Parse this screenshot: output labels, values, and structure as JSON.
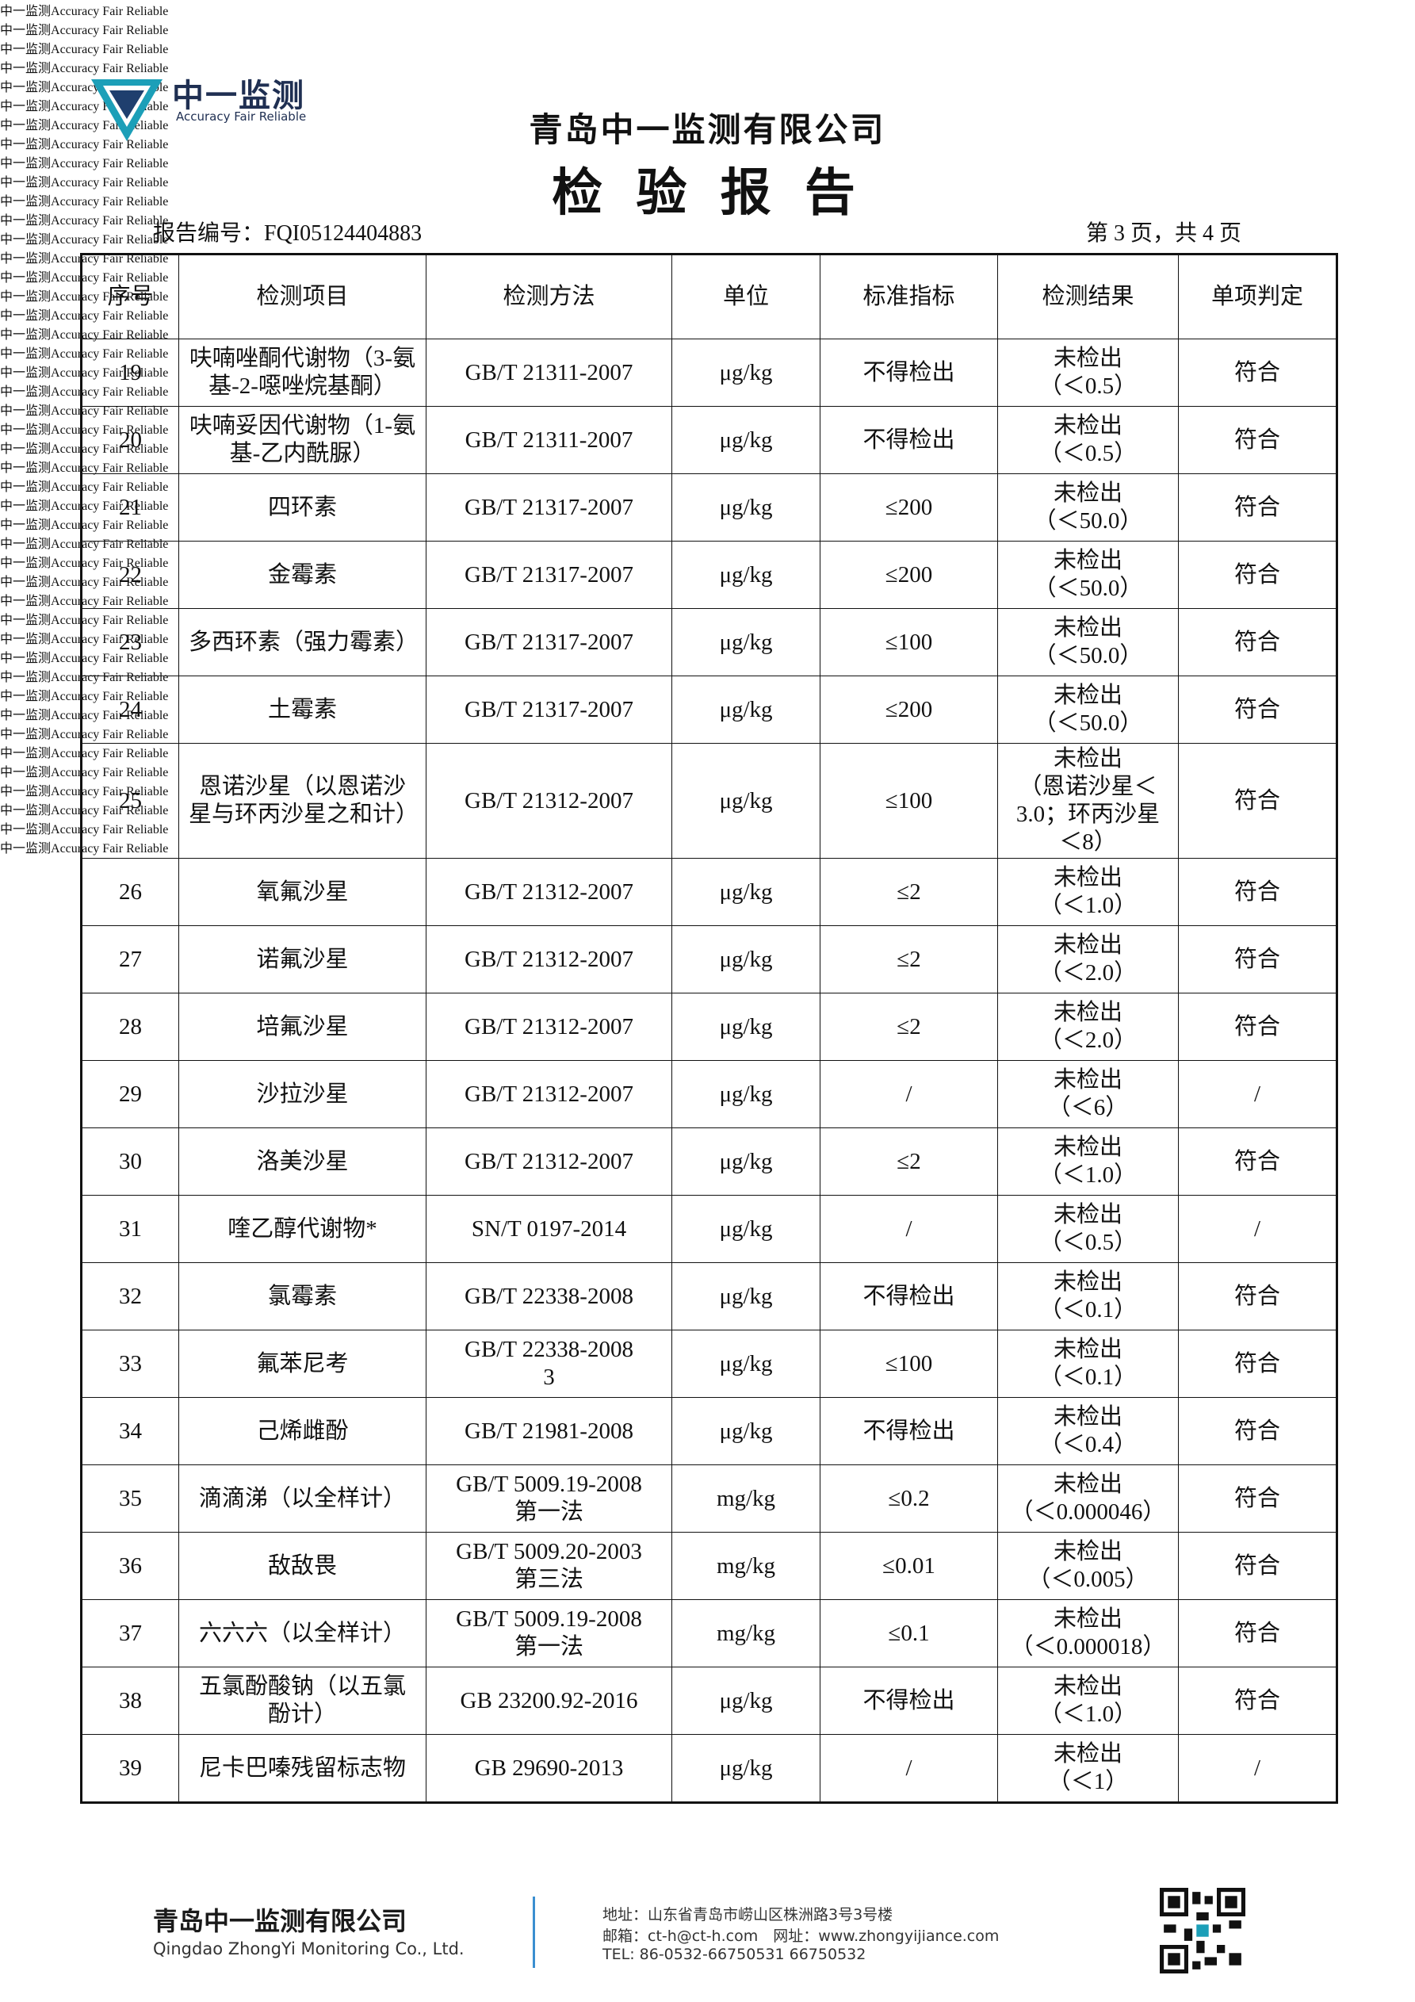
{
  "logo": {
    "name": "中一监测",
    "tagline": "Accuracy Fair Reliable"
  },
  "watermark": {
    "text": "中一监测",
    "tagline": "Accuracy Fair Reliable"
  },
  "header": {
    "company": "青岛中一监测有限公司",
    "title": "检 验 报 告",
    "report_no": "报告编号：FQI05124404883",
    "page_info": "第 3 页，共 4 页"
  },
  "table": {
    "columns": [
      "序号",
      "检测项目",
      "检测方法",
      "单位",
      "标准指标",
      "检测结果",
      "单项判定"
    ],
    "rows": [
      [
        "19",
        "呋喃唑酮代谢物（3-氨基-2-噁唑烷基酮）",
        "GB/T 21311-2007",
        "μg/kg",
        "不得检出",
        "未检出\n（＜0.5）",
        "符合"
      ],
      [
        "20",
        "呋喃妥因代谢物（1-氨基-乙内酰脲）",
        "GB/T 21311-2007",
        "μg/kg",
        "不得检出",
        "未检出\n（＜0.5）",
        "符合"
      ],
      [
        "21",
        "四环素",
        "GB/T 21317-2007",
        "μg/kg",
        "≤200",
        "未检出\n（＜50.0）",
        "符合"
      ],
      [
        "22",
        "金霉素",
        "GB/T 21317-2007",
        "μg/kg",
        "≤200",
        "未检出\n（＜50.0）",
        "符合"
      ],
      [
        "23",
        "多西环素（强力霉素）",
        "GB/T 21317-2007",
        "μg/kg",
        "≤100",
        "未检出\n（＜50.0）",
        "符合"
      ],
      [
        "24",
        "土霉素",
        "GB/T 21317-2007",
        "μg/kg",
        "≤200",
        "未检出\n（＜50.0）",
        "符合"
      ],
      [
        "25",
        "恩诺沙星（以恩诺沙星与环丙沙星之和计）",
        "GB/T 21312-2007",
        "μg/kg",
        "≤100",
        "未检出\n（恩诺沙星＜3.0；环丙沙星＜8）",
        "符合"
      ],
      [
        "26",
        "氧氟沙星",
        "GB/T 21312-2007",
        "μg/kg",
        "≤2",
        "未检出\n（＜1.0）",
        "符合"
      ],
      [
        "27",
        "诺氟沙星",
        "GB/T 21312-2007",
        "μg/kg",
        "≤2",
        "未检出\n（＜2.0）",
        "符合"
      ],
      [
        "28",
        "培氟沙星",
        "GB/T 21312-2007",
        "μg/kg",
        "≤2",
        "未检出\n（＜2.0）",
        "符合"
      ],
      [
        "29",
        "沙拉沙星",
        "GB/T 21312-2007",
        "μg/kg",
        "/",
        "未检出\n（＜6）",
        "/"
      ],
      [
        "30",
        "洛美沙星",
        "GB/T 21312-2007",
        "μg/kg",
        "≤2",
        "未检出\n（＜1.0）",
        "符合"
      ],
      [
        "31",
        "喹乙醇代谢物*",
        "SN/T 0197-2014",
        "μg/kg",
        "/",
        "未检出\n（＜0.5）",
        "/"
      ],
      [
        "32",
        "氯霉素",
        "GB/T 22338-2008",
        "μg/kg",
        "不得检出",
        "未检出\n（＜0.1）",
        "符合"
      ],
      [
        "33",
        "氟苯尼考",
        "GB/T 22338-2008\n3",
        "μg/kg",
        "≤100",
        "未检出\n（＜0.1）",
        "符合"
      ],
      [
        "34",
        "己烯雌酚",
        "GB/T 21981-2008",
        "μg/kg",
        "不得检出",
        "未检出\n（＜0.4）",
        "符合"
      ],
      [
        "35",
        "滴滴涕（以全样计）",
        "GB/T 5009.19-2008\n第一法",
        "mg/kg",
        "≤0.2",
        "未检出\n（＜0.000046）",
        "符合"
      ],
      [
        "36",
        "敌敌畏",
        "GB/T 5009.20-2003\n第三法",
        "mg/kg",
        "≤0.01",
        "未检出\n（＜0.005）",
        "符合"
      ],
      [
        "37",
        "六六六（以全样计）",
        "GB/T 5009.19-2008\n第一法",
        "mg/kg",
        "≤0.1",
        "未检出\n（＜0.000018）",
        "符合"
      ],
      [
        "38",
        "五氯酚酸钠（以五氯酚计）",
        "GB 23200.92-2016",
        "μg/kg",
        "不得检出",
        "未检出\n（＜1.0）",
        "符合"
      ],
      [
        "39",
        "尼卡巴嗪残留标志物",
        "GB 29690-2013",
        "μg/kg",
        "/",
        "未检出\n（＜1）",
        "/"
      ]
    ]
  },
  "footer": {
    "company": "青岛中一监测有限公司",
    "company_en": "Qingdao ZhongYi Monitoring Co., Ltd.",
    "address": "地址：山东省青岛市崂山区株洲路3号3号楼",
    "contact": "邮箱：ct-h@ct-h.com　网址：www.zhongyijiance.com",
    "tel": "TEL: 86-0532-66750531 66750532"
  }
}
